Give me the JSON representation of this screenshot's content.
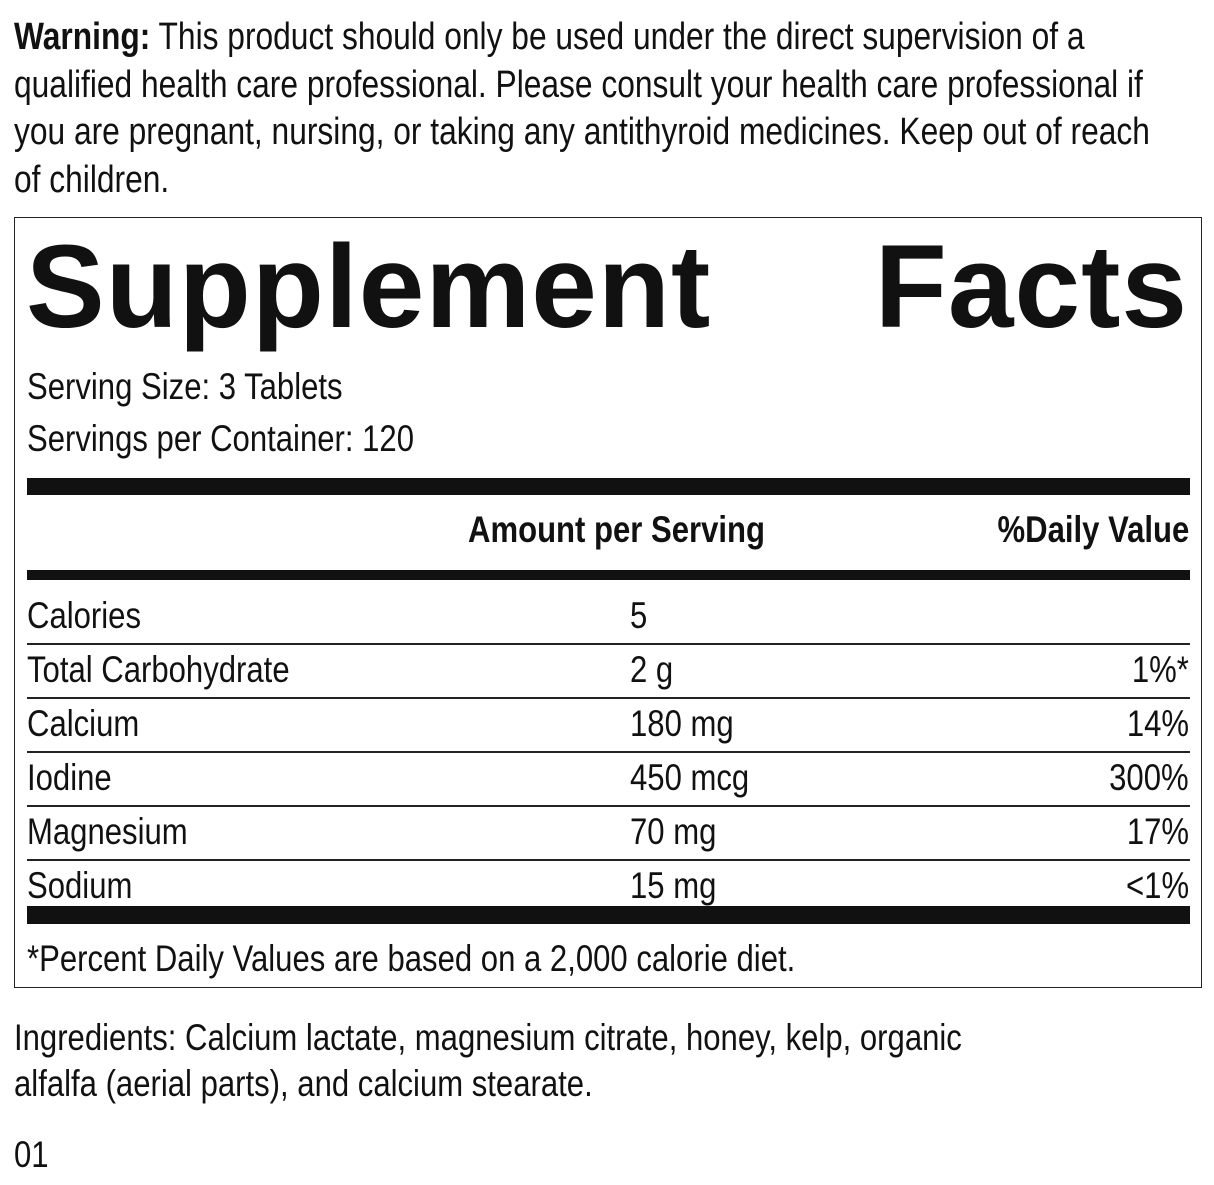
{
  "warning": {
    "label": "Warning:",
    "text": " This product should only be used under the direct supervision of a qualified health care professional. Please consult your health care professional if you are pregnant, nursing, or taking any antithyroid medicines. Keep out of reach of children."
  },
  "facts": {
    "title_left": "Supplement",
    "title_right": "Facts",
    "serving_size": "Serving Size: 3 Tablets",
    "servings_per_container": "Servings per Container: 120",
    "header_amount": "Amount per Serving",
    "header_dv": "%Daily Value",
    "rows": [
      {
        "name": "Calories",
        "amount": "5",
        "dv": ""
      },
      {
        "name": "Total Carbohydrate",
        "amount": "2 g",
        "dv": "1%*"
      },
      {
        "name": "Calcium",
        "amount": "180 mg",
        "dv": "14%"
      },
      {
        "name": "Iodine",
        "amount": "450 mcg",
        "dv": "300%"
      },
      {
        "name": "Magnesium",
        "amount": "70 mg",
        "dv": "17%"
      },
      {
        "name": "Sodium",
        "amount": "15 mg",
        "dv": "<1%"
      }
    ],
    "footnote": "*Percent Daily Values are based on a 2,000 calorie diet."
  },
  "ingredients": {
    "line1": "Ingredients: Calcium lactate, magnesium citrate, honey, kelp, organic",
    "line2": "alfalfa (aerial parts), and calcium stearate."
  },
  "code": "01"
}
